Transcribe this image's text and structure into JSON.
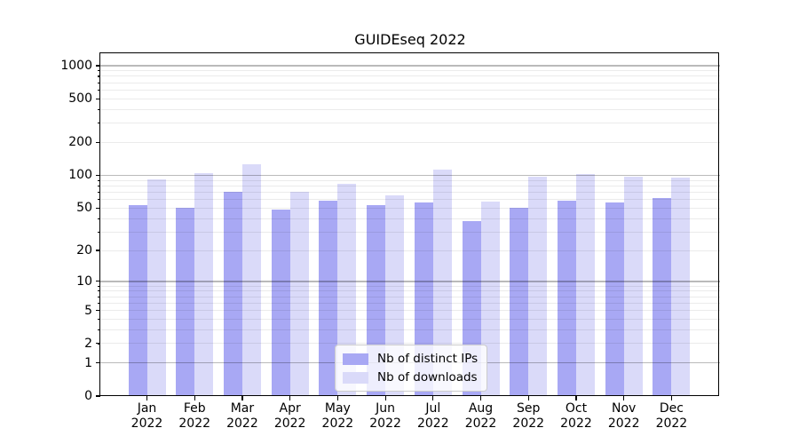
{
  "title": "GUIDEseq 2022",
  "chart_data": {
    "type": "bar",
    "title": "GUIDEseq 2022",
    "x_categories": [
      "Jan 2022",
      "Feb 2022",
      "Mar 2022",
      "Apr 2022",
      "May 2022",
      "Jun 2022",
      "Jul 2022",
      "Aug 2022",
      "Sep 2022",
      "Oct 2022",
      "Nov 2022",
      "Dec 2022"
    ],
    "months": [
      "Jan",
      "Feb",
      "Mar",
      "Apr",
      "May",
      "Jun",
      "Jul",
      "Aug",
      "Sep",
      "Oct",
      "Nov",
      "Dec"
    ],
    "year": "2022",
    "series": [
      {
        "name": "Nb of distinct IPs",
        "color": "#a8a8f4",
        "values": [
          53,
          50,
          70,
          48,
          58,
          53,
          56,
          38,
          50,
          58,
          56,
          62
        ]
      },
      {
        "name": "Nb of downloads",
        "color": "#dadaf9",
        "values": [
          92,
          104,
          126,
          70,
          83,
          66,
          112,
          57,
          98,
          102,
          97,
          96
        ]
      }
    ],
    "y_axis": {
      "scale": "log1p",
      "tick_labels": [
        "0",
        "1",
        "2",
        "5",
        "10",
        "20",
        "50",
        "100",
        "200",
        "500",
        "1000"
      ],
      "tick_values": [
        0,
        1,
        2,
        5,
        10,
        20,
        50,
        100,
        200,
        500,
        1000
      ],
      "major_gridline_values": [
        1,
        10,
        100,
        1000
      ],
      "ylim": [
        0,
        1300
      ]
    },
    "legend": {
      "position": "lower-center",
      "entries": [
        "Nb of distinct IPs",
        "Nb of downloads"
      ]
    },
    "grid": true
  },
  "colors": {
    "background": "#ffffff",
    "bar_distinct_ips": "#a8a8f4",
    "bar_downloads": "#dadaf9",
    "grid_major": "#bababa",
    "grid_minor": "#ebebeb",
    "spine": "#000000",
    "legend_border": "#cccccc"
  }
}
